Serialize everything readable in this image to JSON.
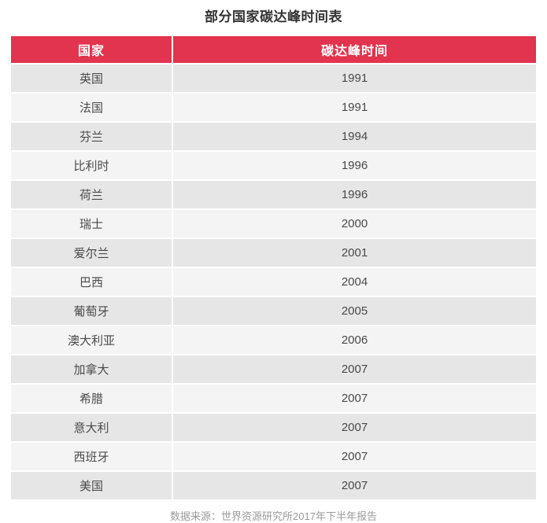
{
  "page": {
    "title": "部分国家碳达峰时间表",
    "source_note": "数据来源：世界资源研究所2017年下半年报告"
  },
  "table": {
    "headers": {
      "country": "国家",
      "peak_time": "碳达峰时间"
    },
    "rows": [
      {
        "country": "英国",
        "year": "1991"
      },
      {
        "country": "法国",
        "year": "1991"
      },
      {
        "country": "芬兰",
        "year": "1994"
      },
      {
        "country": "比利时",
        "year": "1996"
      },
      {
        "country": "荷兰",
        "year": "1996"
      },
      {
        "country": "瑞士",
        "year": "2000"
      },
      {
        "country": "爱尔兰",
        "year": "2001"
      },
      {
        "country": "巴西",
        "year": "2004"
      },
      {
        "country": "葡萄牙",
        "year": "2005"
      },
      {
        "country": "澳大利亚",
        "year": "2006"
      },
      {
        "country": "加拿大",
        "year": "2007"
      },
      {
        "country": "希腊",
        "year": "2007"
      },
      {
        "country": "意大利",
        "year": "2007"
      },
      {
        "country": "西班牙",
        "year": "2007"
      },
      {
        "country": "美国",
        "year": "2007"
      }
    ]
  },
  "colors": {
    "header_bg": "#e2344e",
    "header_text": "#ffffff",
    "row_odd_bg": "#e6e6e6",
    "row_even_bg": "#f4f4f4",
    "title_text": "#333333",
    "cell_text": "#4a4a4a",
    "source_text": "#9a9a9a"
  },
  "chart_data": {
    "type": "table",
    "title": "部分国家碳达峰时间表",
    "columns": [
      "国家",
      "碳达峰时间"
    ],
    "rows": [
      [
        "英国",
        1991
      ],
      [
        "法国",
        1991
      ],
      [
        "芬兰",
        1994
      ],
      [
        "比利时",
        1996
      ],
      [
        "荷兰",
        1996
      ],
      [
        "瑞士",
        2000
      ],
      [
        "爱尔兰",
        2001
      ],
      [
        "巴西",
        2004
      ],
      [
        "葡萄牙",
        2005
      ],
      [
        "澳大利亚",
        2006
      ],
      [
        "加拿大",
        2007
      ],
      [
        "希腊",
        2007
      ],
      [
        "意大利",
        2007
      ],
      [
        "西班牙",
        2007
      ],
      [
        "美国",
        2007
      ]
    ],
    "annotations": [
      "数据来源：世界资源研究所2017年下半年报告"
    ]
  }
}
